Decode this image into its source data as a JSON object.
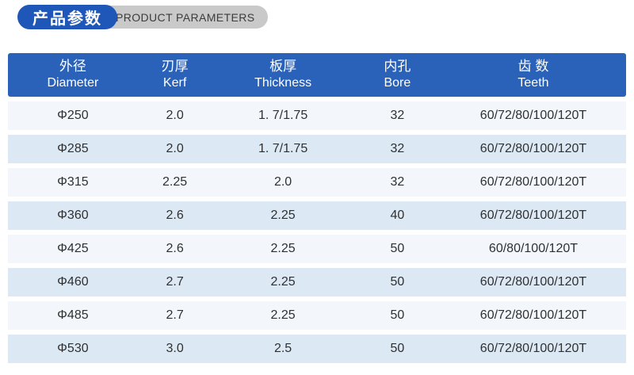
{
  "page": {
    "background": "#ffffff"
  },
  "badge": {
    "title_zh": "产品参数",
    "title_en": "PRODUCT PARAMETERS",
    "blue_pill_color": "#1f57b8",
    "gray_pill_color": "#c9c9c9",
    "en_text_color": "#3c3c3c"
  },
  "table": {
    "header_bg": "#2a62ba",
    "header_text_color": "#ffffff",
    "row_alt_colors": [
      "#f3f7fb",
      "#dce9f5"
    ],
    "cell_text_color": "#303030",
    "columns": [
      {
        "zh": "外径",
        "en": "Diameter"
      },
      {
        "zh": "刃厚",
        "en": "Kerf"
      },
      {
        "zh": "板厚",
        "en": "Thickness"
      },
      {
        "zh": "内孔",
        "en": "Bore"
      },
      {
        "zh": "齿 数",
        "en": "Teeth"
      }
    ],
    "rows": [
      {
        "diameter": "Φ250",
        "kerf": "2.0",
        "thickness": "1. 7/1.75",
        "bore": "32",
        "teeth": "60/72/80/100/120T"
      },
      {
        "diameter": "Φ285",
        "kerf": "2.0",
        "thickness": "1. 7/1.75",
        "bore": "32",
        "teeth": "60/72/80/100/120T"
      },
      {
        "diameter": "Φ315",
        "kerf": "2.25",
        "thickness": "2.0",
        "bore": "32",
        "teeth": "60/72/80/100/120T"
      },
      {
        "diameter": "Φ360",
        "kerf": "2.6",
        "thickness": "2.25",
        "bore": "40",
        "teeth": "60/72/80/100/120T"
      },
      {
        "diameter": "Φ425",
        "kerf": "2.6",
        "thickness": "2.25",
        "bore": "50",
        "teeth": "60/80/100/120T"
      },
      {
        "diameter": "Φ460",
        "kerf": "2.7",
        "thickness": "2.25",
        "bore": "50",
        "teeth": "60/72/80/100/120T"
      },
      {
        "diameter": "Φ485",
        "kerf": "2.7",
        "thickness": "2.25",
        "bore": "50",
        "teeth": "60/72/80/100/120T"
      },
      {
        "diameter": "Φ530",
        "kerf": "3.0",
        "thickness": "2.5",
        "bore": "50",
        "teeth": "60/72/80/100/120T"
      }
    ]
  }
}
